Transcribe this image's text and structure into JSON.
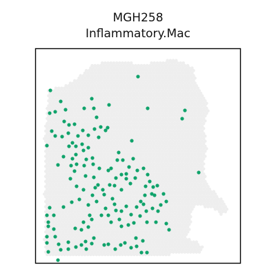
{
  "chart_data": {
    "type": "scatter",
    "title": [
      "MGH258",
      "Inflammatory.Mac"
    ],
    "xlabel": "",
    "ylabel": "",
    "grid": false,
    "background_color": "#eeeeee",
    "highlight_color": "#10a36b",
    "highlighted_spots": [
      [
        73,
        131
      ],
      [
        72,
        164
      ],
      [
        80,
        162
      ],
      [
        88,
        147
      ],
      [
        95,
        159
      ],
      [
        93,
        176
      ],
      [
        75,
        190
      ],
      [
        80,
        197
      ],
      [
        90,
        198
      ],
      [
        100,
        181
      ],
      [
        108,
        180
      ],
      [
        122,
        157
      ],
      [
        136,
        157
      ],
      [
        133,
        143
      ],
      [
        158,
        152
      ],
      [
        140,
        170
      ],
      [
        137,
        187
      ],
      [
        153,
        189
      ],
      [
        143,
        199
      ],
      [
        120,
        189
      ],
      [
        113,
        197
      ],
      [
        105,
        207
      ],
      [
        110,
        212
      ],
      [
        119,
        209
      ],
      [
        121,
        218
      ],
      [
        128,
        214
      ],
      [
        99,
        193
      ],
      [
        100,
        212
      ],
      [
        92,
        227
      ],
      [
        68,
        211
      ],
      [
        84,
        239
      ],
      [
        103,
        240
      ],
      [
        108,
        248
      ],
      [
        102,
        259
      ],
      [
        111,
        270
      ],
      [
        121,
        275
      ],
      [
        115,
        289
      ],
      [
        104,
        293
      ],
      [
        92,
        300
      ],
      [
        72,
        301
      ],
      [
        68,
        312
      ],
      [
        78,
        312
      ],
      [
        70,
        322
      ],
      [
        70,
        328
      ],
      [
        78,
        332
      ],
      [
        68,
        343
      ],
      [
        68,
        352
      ],
      [
        70,
        365
      ],
      [
        80,
        343
      ],
      [
        85,
        354
      ],
      [
        99,
        351
      ],
      [
        109,
        331
      ],
      [
        118,
        333
      ],
      [
        121,
        322
      ],
      [
        128,
        329
      ],
      [
        133,
        318
      ],
      [
        147,
        312
      ],
      [
        157,
        312
      ],
      [
        161,
        322
      ],
      [
        173,
        318
      ],
      [
        176,
        328
      ],
      [
        186,
        326
      ],
      [
        194,
        323
      ],
      [
        190,
        311
      ],
      [
        203,
        313
      ],
      [
        198,
        300
      ],
      [
        183,
        299
      ],
      [
        176,
        306
      ],
      [
        166,
        296
      ],
      [
        163,
        288
      ],
      [
        151,
        282
      ],
      [
        149,
        275
      ],
      [
        142,
        268
      ],
      [
        136,
        257
      ],
      [
        124,
        255
      ],
      [
        122,
        240
      ],
      [
        111,
        238
      ],
      [
        135,
        238
      ],
      [
        144,
        244
      ],
      [
        157,
        247
      ],
      [
        161,
        244
      ],
      [
        168,
        258
      ],
      [
        176,
        253
      ],
      [
        183,
        259
      ],
      [
        189,
        266
      ],
      [
        196,
        258
      ],
      [
        199,
        247
      ],
      [
        208,
        244
      ],
      [
        214,
        253
      ],
      [
        217,
        263
      ],
      [
        211,
        270
      ],
      [
        220,
        281
      ],
      [
        210,
        283
      ],
      [
        204,
        292
      ],
      [
        208,
        296
      ],
      [
        221,
        302
      ],
      [
        229,
        306
      ],
      [
        233,
        297
      ],
      [
        241,
        292
      ],
      [
        237,
        281
      ],
      [
        224,
        283
      ],
      [
        222,
        271
      ],
      [
        228,
        269
      ],
      [
        176,
        275
      ],
      [
        166,
        269
      ],
      [
        159,
        268
      ],
      [
        153,
        302
      ],
      [
        138,
        272
      ],
      [
        134,
        283
      ],
      [
        128,
        297
      ],
      [
        130,
        312
      ],
      [
        140,
        292
      ],
      [
        151,
        355
      ],
      [
        157,
        354
      ],
      [
        167,
        361
      ],
      [
        175,
        355
      ],
      [
        181,
        352
      ],
      [
        190,
        359
      ],
      [
        198,
        357
      ],
      [
        205,
        366
      ],
      [
        213,
        366
      ],
      [
        207,
        349
      ],
      [
        197,
        345
      ],
      [
        136,
        345
      ],
      [
        124,
        350
      ],
      [
        118,
        355
      ],
      [
        110,
        358
      ],
      [
        125,
        361
      ],
      [
        133,
        353
      ],
      [
        99,
        361
      ],
      [
        88,
        362
      ],
      [
        84,
        377
      ],
      [
        241,
        324
      ],
      [
        226,
        322
      ],
      [
        213,
        322
      ],
      [
        212,
        306
      ],
      [
        170,
        232
      ],
      [
        178,
        232
      ],
      [
        172,
        221
      ],
      [
        191,
        204
      ],
      [
        156,
        185
      ],
      [
        146,
        184
      ],
      [
        128,
        196
      ],
      [
        105,
        230
      ],
      [
        110,
        224
      ],
      [
        125,
        231
      ],
      [
        134,
        229
      ],
      [
        200,
        111
      ],
      [
        214,
        157
      ],
      [
        264,
        172
      ],
      [
        268,
        160
      ],
      [
        288,
        250
      ],
      [
        245,
        333
      ],
      [
        187,
        242
      ],
      [
        193,
        230
      ],
      [
        183,
        252
      ],
      [
        168,
        305
      ]
    ]
  }
}
